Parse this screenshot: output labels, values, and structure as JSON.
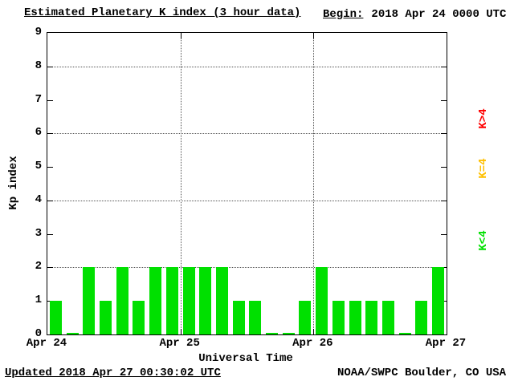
{
  "header": {
    "title": "Estimated Planetary K index (3 hour data)",
    "begin_label": "Begin:",
    "begin_value": "2018 Apr 24 0000 UTC"
  },
  "footer": {
    "updated": "Updated 2018 Apr 27 00:30:02 UTC",
    "credit": "NOAA/SWPC Boulder, CO USA"
  },
  "chart_data": {
    "type": "bar",
    "title": "Estimated Planetary K index (3 hour data)",
    "xlabel": "Universal Time",
    "ylabel": "Kp index",
    "ylim": [
      0,
      9
    ],
    "y_ticks": [
      0,
      1,
      2,
      3,
      4,
      5,
      6,
      7,
      8,
      9
    ],
    "x_tick_labels": [
      "Apr 24",
      "Apr 25",
      "Apr 26",
      "Apr 27"
    ],
    "bin_hours": 3,
    "values": [
      1,
      0,
      2,
      1,
      2,
      1,
      2,
      2,
      2,
      2,
      2,
      1,
      1,
      0,
      0,
      1,
      2,
      1,
      1,
      1,
      1,
      0,
      1,
      2
    ],
    "bar_color": "#00e000",
    "grid_y_values": [
      2,
      4,
      6,
      8
    ],
    "grid_x_day_boundaries": [
      1,
      2
    ],
    "legend_position": "right",
    "legend": [
      {
        "label": "K>4",
        "color": "#ff0000"
      },
      {
        "label": "K=4",
        "color": "#ffc000"
      },
      {
        "label": "K<4",
        "color": "#00e000"
      }
    ]
  }
}
